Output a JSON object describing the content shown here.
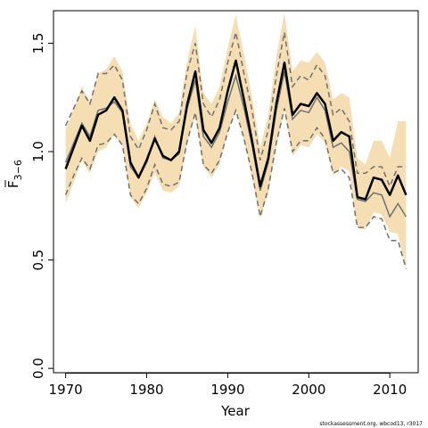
{
  "chart_data": {
    "type": "line",
    "xlabel": "Year",
    "ylabel_main": "F",
    "ylabel_sub": "3−6",
    "credit": "stockassessment.org, wbcod13, r3017",
    "xlim": [
      1968.5,
      2013.5
    ],
    "ylim": [
      -0.02,
      1.65
    ],
    "xticks": [
      1970,
      1980,
      1990,
      2000,
      2010
    ],
    "yticks": [
      0.0,
      0.5,
      1.0,
      1.5
    ],
    "ytick_labels": [
      "0.0",
      "0.5",
      "1.0",
      "1.5"
    ],
    "colors": {
      "band": "#f5deb3",
      "estimate": "#000000",
      "previous": "#707070"
    },
    "x": [
      1970,
      1971,
      1972,
      1973,
      1974,
      1975,
      1976,
      1977,
      1978,
      1979,
      1980,
      1981,
      1982,
      1983,
      1984,
      1985,
      1986,
      1987,
      1988,
      1989,
      1990,
      1991,
      1992,
      1993,
      1994,
      1995,
      1996,
      1997,
      1998,
      1999,
      2000,
      2001,
      2002,
      2003,
      2004,
      2005,
      2006,
      2007,
      2008,
      2009,
      2010,
      2011,
      2012
    ],
    "series": [
      {
        "role": "estimate",
        "values": [
          0.92,
          1.02,
          1.12,
          1.05,
          1.17,
          1.19,
          1.25,
          1.19,
          0.95,
          0.88,
          0.96,
          1.06,
          0.98,
          0.96,
          1.0,
          1.22,
          1.37,
          1.1,
          1.04,
          1.11,
          1.28,
          1.42,
          1.24,
          1.05,
          0.84,
          0.97,
          1.22,
          1.41,
          1.17,
          1.22,
          1.21,
          1.27,
          1.22,
          1.05,
          1.09,
          1.07,
          0.79,
          0.78,
          0.88,
          0.87,
          0.8,
          0.89,
          0.8
        ]
      },
      {
        "role": "lower_band",
        "values": [
          0.76,
          0.86,
          0.96,
          0.9,
          1.0,
          1.02,
          1.08,
          1.03,
          0.79,
          0.74,
          0.81,
          0.9,
          0.82,
          0.81,
          0.84,
          1.04,
          1.17,
          0.93,
          0.88,
          0.94,
          1.08,
          1.2,
          1.05,
          0.88,
          0.69,
          0.81,
          1.02,
          1.19,
          0.98,
          1.03,
          1.02,
          1.08,
          1.04,
          0.89,
          0.93,
          0.91,
          0.65,
          0.64,
          0.72,
          0.71,
          0.63,
          0.62,
          0.46
        ]
      },
      {
        "role": "upper_band",
        "values": [
          1.1,
          1.2,
          1.3,
          1.23,
          1.36,
          1.38,
          1.44,
          1.37,
          1.13,
          1.05,
          1.13,
          1.24,
          1.16,
          1.13,
          1.18,
          1.42,
          1.58,
          1.27,
          1.22,
          1.3,
          1.48,
          1.63,
          1.45,
          1.25,
          1.02,
          1.17,
          1.44,
          1.64,
          1.37,
          1.42,
          1.41,
          1.46,
          1.41,
          1.24,
          1.27,
          1.25,
          0.97,
          0.94,
          1.05,
          1.05,
          0.97,
          1.14,
          1.14
        ]
      },
      {
        "role": "previous",
        "values": [
          0.95,
          1.04,
          1.13,
          1.07,
          1.19,
          1.2,
          1.23,
          1.18,
          0.93,
          0.88,
          0.95,
          1.07,
          0.97,
          0.96,
          0.99,
          1.2,
          1.33,
          1.07,
          1.02,
          1.09,
          1.23,
          1.35,
          1.2,
          1.03,
          0.82,
          0.95,
          1.19,
          1.37,
          1.15,
          1.19,
          1.18,
          1.25,
          1.19,
          1.02,
          1.04,
          1.0,
          0.78,
          0.77,
          0.81,
          0.8,
          0.7,
          0.76,
          0.7
        ]
      },
      {
        "role": "previous_lower",
        "values": [
          0.8,
          0.89,
          0.97,
          0.92,
          1.03,
          1.04,
          1.08,
          1.03,
          0.8,
          0.76,
          0.83,
          0.94,
          0.85,
          0.84,
          0.86,
          1.05,
          1.18,
          0.94,
          0.9,
          0.96,
          1.09,
          1.19,
          1.06,
          0.9,
          0.7,
          0.83,
          1.04,
          1.2,
          1.0,
          1.05,
          1.05,
          1.11,
          1.06,
          0.9,
          0.92,
          0.88,
          0.65,
          0.65,
          0.7,
          0.69,
          0.59,
          0.59,
          0.46
        ]
      },
      {
        "role": "previous_upper",
        "values": [
          1.12,
          1.2,
          1.28,
          1.22,
          1.36,
          1.36,
          1.4,
          1.33,
          1.07,
          1.01,
          1.1,
          1.22,
          1.11,
          1.1,
          1.14,
          1.37,
          1.5,
          1.22,
          1.16,
          1.24,
          1.41,
          1.55,
          1.36,
          1.19,
          0.96,
          1.1,
          1.35,
          1.55,
          1.3,
          1.35,
          1.33,
          1.4,
          1.35,
          1.17,
          1.2,
          1.14,
          0.9,
          0.9,
          0.93,
          0.93,
          0.84,
          0.93,
          0.93
        ]
      }
    ]
  }
}
